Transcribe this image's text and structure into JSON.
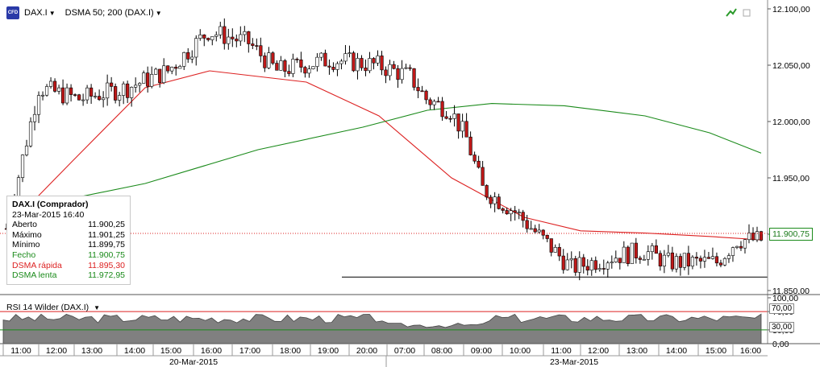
{
  "header": {
    "symbol": "DAX.I",
    "indicator": "DSMA 50; 200 (DAX.I)",
    "logo_text": "CFD"
  },
  "info_box": {
    "title": "DAX.I (Comprador)",
    "datetime": "23-Mar-2015 16:40",
    "rows": [
      {
        "label": "Aberto",
        "value": "11.900,25",
        "color": "#000000"
      },
      {
        "label": "Máximo",
        "value": "11.901,25",
        "color": "#000000"
      },
      {
        "label": "Mínimo",
        "value": "11.899,75",
        "color": "#000000"
      },
      {
        "label": "Fecho",
        "value": "11.900,75",
        "color": "#1a8a1a"
      },
      {
        "label": "DSMA rápida",
        "value": "11.895,30",
        "color": "#dd2222"
      },
      {
        "label": "DSMA lenta",
        "value": "11.972,95",
        "color": "#1a8a1a"
      }
    ]
  },
  "price_axis": {
    "ticks": [
      "12.100,00",
      "12.050,00",
      "12.000,00",
      "11.950,00",
      "11.900,00",
      "11.850,00"
    ],
    "current": "11.900,75"
  },
  "rsi": {
    "label": "RSI 14 Wilder (DAX.I)",
    "ticks": [
      "100,00",
      "70,00",
      "30,00",
      "0,00"
    ],
    "upper": "70,00",
    "lower": "30,00"
  },
  "time_axis": {
    "hours": [
      "11:00",
      "12:00",
      "13:00",
      "14:00",
      "15:00",
      "16:00",
      "17:00",
      "18:00",
      "19:00",
      "20:00",
      "07:00",
      "08:00",
      "09:00",
      "10:00",
      "11:00",
      "12:00",
      "13:00",
      "14:00",
      "15:00",
      "16:00"
    ],
    "dates": [
      "20-Mar-2015",
      "23-Mar-2015"
    ]
  },
  "chart_data": {
    "type": "candlestick",
    "title": "DAX.I",
    "ylim": [
      11850,
      12100
    ],
    "series": [
      {
        "name": "DSMA rápida",
        "color": "#dd2222",
        "values": [
          11905,
          11965,
          12030,
          12045,
          12035,
          12005,
          11950,
          11915,
          11903,
          11901,
          11898,
          11895
        ]
      },
      {
        "name": "DSMA lenta",
        "color": "#1a8a1a",
        "values": [
          11920,
          11945,
          11975,
          11995,
          12010,
          12016,
          12014,
          12005,
          11990,
          11972
        ]
      }
    ],
    "rsi_levels": [
      70,
      30
    ]
  },
  "colors": {
    "bull": "#ffffff",
    "bear": "#c01818",
    "grid": "#c0c0c0",
    "rsi_fill": "#808080"
  }
}
